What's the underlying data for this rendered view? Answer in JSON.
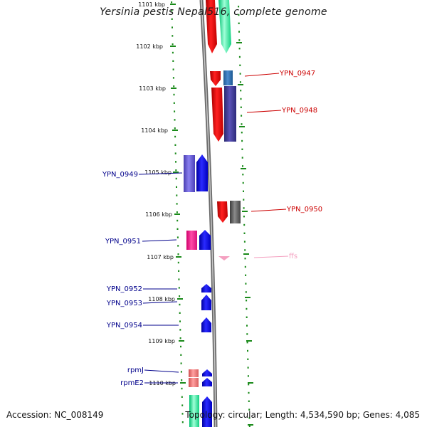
{
  "title": "Yersinia pestis Nepal516, complete genome",
  "accession": "Accession: NC_008149",
  "summary": "Topology: circular; Length: 4,534,590 bp; Genes: 4,085",
  "ruler": {
    "unit": "kbp",
    "ticks": [
      "1101 kbp",
      "1102 kbp",
      "1103 kbp",
      "1104 kbp",
      "1105 kbp",
      "1106 kbp",
      "1107 kbp",
      "1108 kbp",
      "1109 kbp",
      "1110 kbp"
    ]
  },
  "genes": [
    {
      "name": "YPN_0947",
      "label": "YPN_0947",
      "color": "#cc0000"
    },
    {
      "name": "YPN_0948",
      "label": "YPN_0948",
      "color": "#cc0000"
    },
    {
      "name": "YPN_0949",
      "label": "YPN_0949",
      "color": "#00008b"
    },
    {
      "name": "YPN_0950",
      "label": "YPN_0950",
      "color": "#cc0000"
    },
    {
      "name": "YPN_0951",
      "label": "YPN_0951",
      "color": "#00008b"
    },
    {
      "name": "ffs",
      "label": "ffs",
      "color": "#f4a0c0"
    },
    {
      "name": "YPN_0952",
      "label": "YPN_0952",
      "color": "#00008b"
    },
    {
      "name": "YPN_0953",
      "label": "YPN_0953",
      "color": "#00008b"
    },
    {
      "name": "YPN_0954",
      "label": "YPN_0954",
      "color": "#00008b"
    },
    {
      "name": "rpmJ",
      "label": "rpmJ",
      "color": "#00008b"
    },
    {
      "name": "rpmE2",
      "label": "rpmE2",
      "color": "#00008b"
    }
  ],
  "colors": {
    "forward_cds": "#0000ee",
    "reverse_cds": "#ee0000",
    "rrna": "#f08080",
    "trna": "#ff1493",
    "misc": "#20e89a",
    "gray": "#666666",
    "ruler_green": "#1a8a1a",
    "backbone": "#7a7a7a"
  }
}
